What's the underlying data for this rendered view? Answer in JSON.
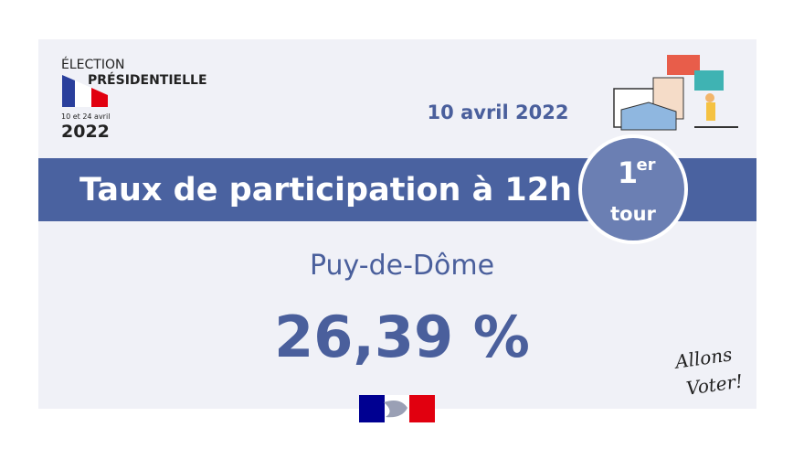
{
  "logo": {
    "line1": "ÉLECTION",
    "line2": "PRÉSIDENTIELLE",
    "dates": "10 et 24 avril",
    "year": "2022"
  },
  "date": "10 avril 2022",
  "banner": {
    "title": "Taux de participation à 12h"
  },
  "badge": {
    "number": "1",
    "sup": "er",
    "word": "tour"
  },
  "region": "Puy-de-Dôme",
  "rate": "26,39 %",
  "slogan": {
    "line1": "Allons",
    "line2": "Voter!"
  }
}
